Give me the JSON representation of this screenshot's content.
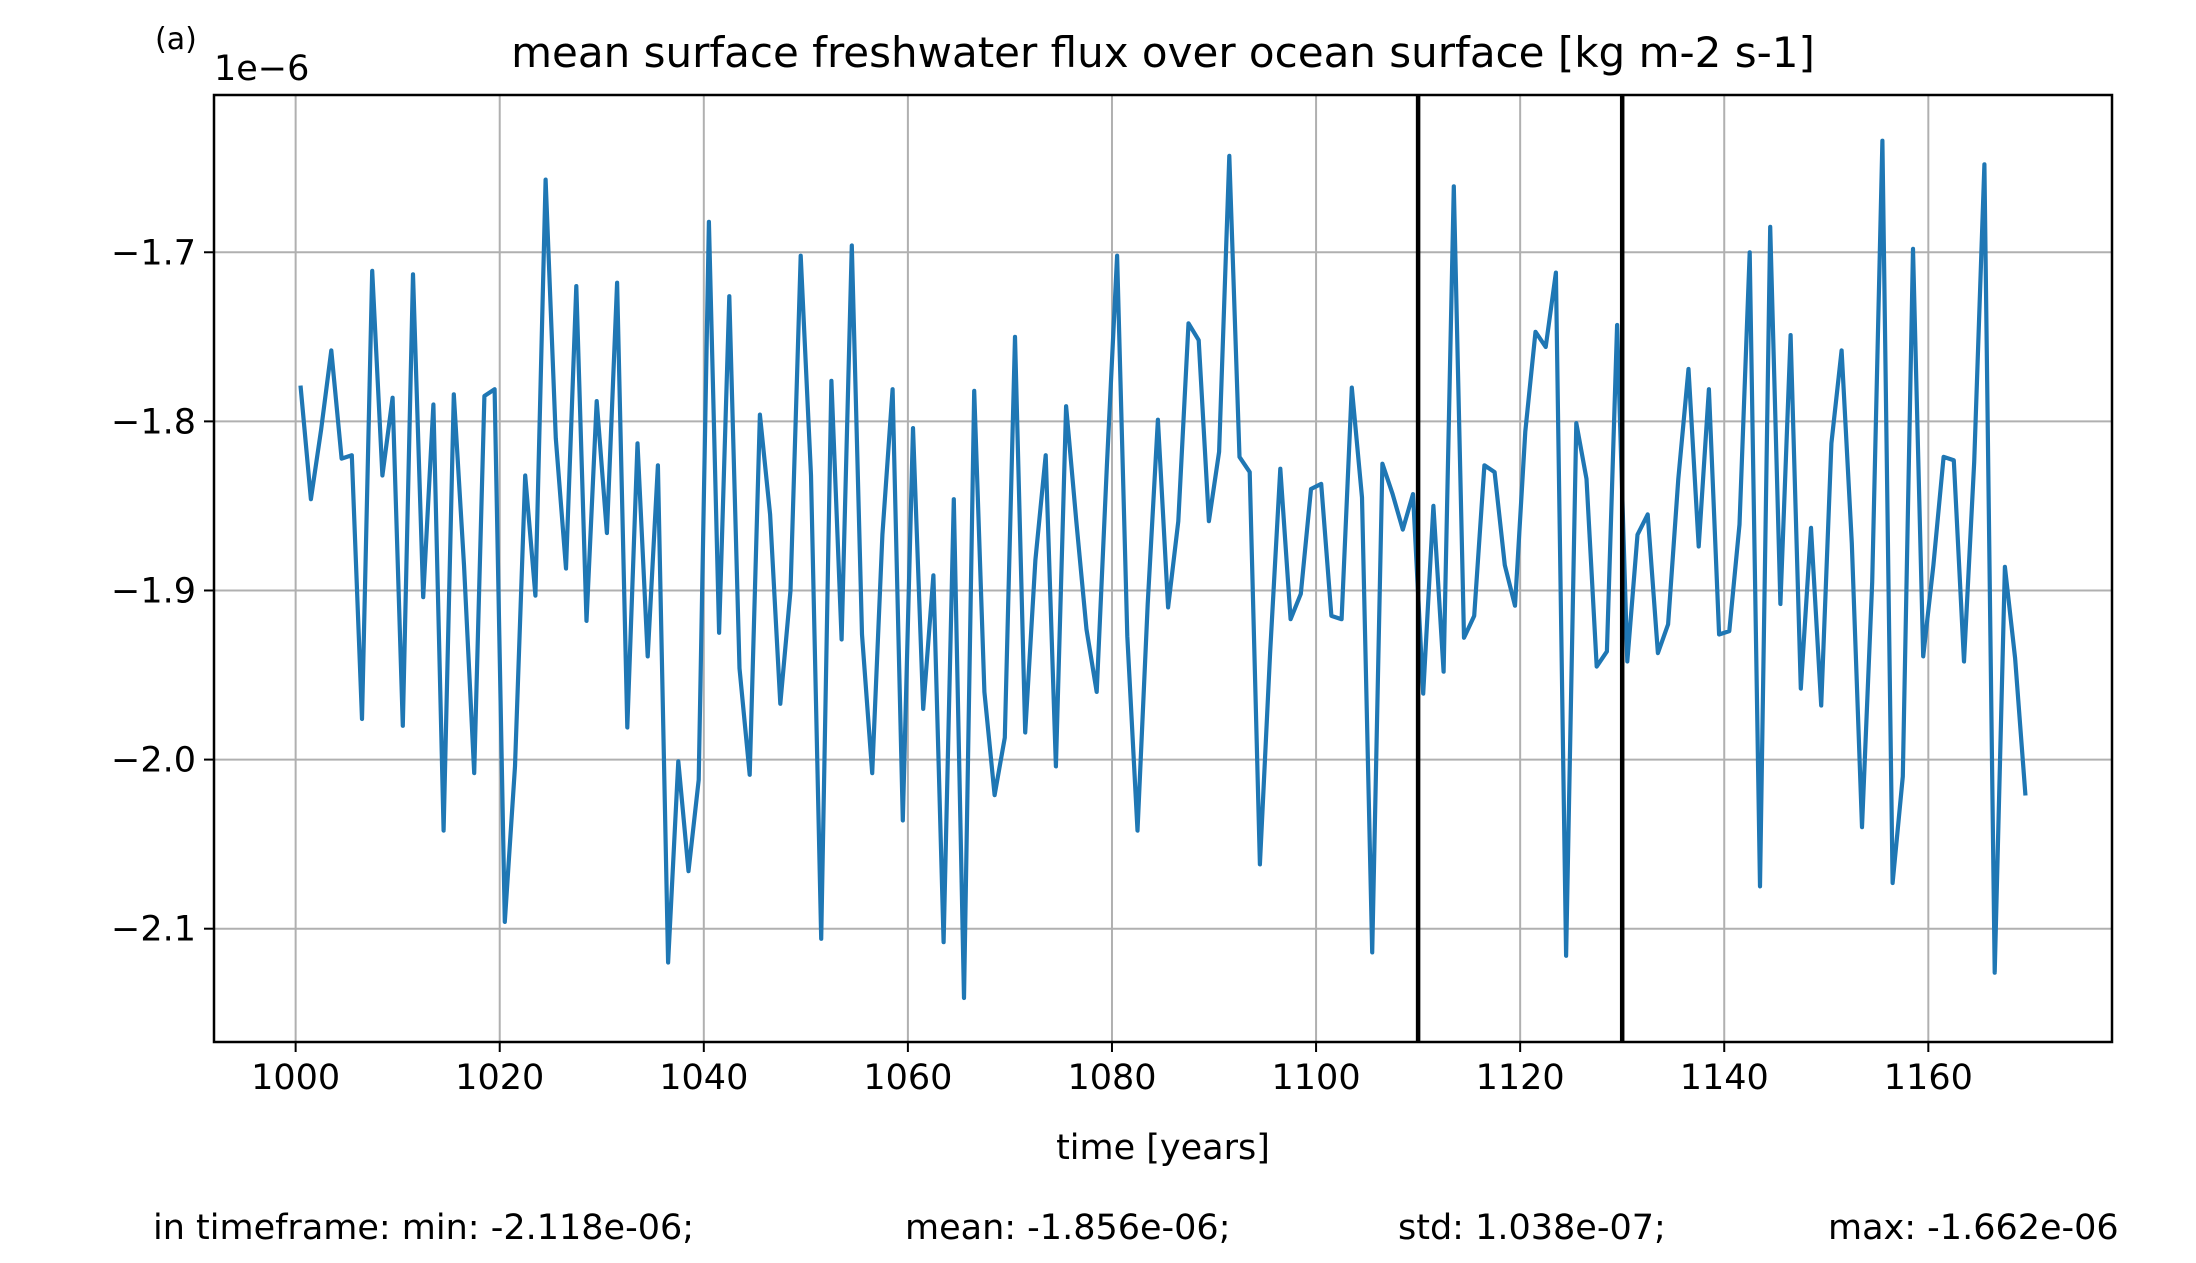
{
  "panel_label": "(a)",
  "footer": {
    "min": "in timeframe: min: -2.118e-06;",
    "mean": "mean: -1.856e-06;",
    "std": "std: 1.038e-07;",
    "max": "max: -1.662e-06"
  },
  "chart_data": {
    "type": "line",
    "title": "mean surface freshwater flux over ocean surface [kg m-2 s-1]",
    "xlabel": "time [years]",
    "ylabel": "",
    "y_offset_label": "1e−6",
    "xlim": [
      992,
      1178
    ],
    "ylim": [
      -2.167,
      -1.607
    ],
    "xticks": [
      1000,
      1020,
      1040,
      1060,
      1080,
      1100,
      1120,
      1140,
      1160
    ],
    "xtick_labels": [
      "1000",
      "1020",
      "1040",
      "1060",
      "1080",
      "1100",
      "1120",
      "1140",
      "1160"
    ],
    "yticks": [
      -1.7,
      -1.8,
      -1.9,
      -2.0,
      -2.1
    ],
    "ytick_labels": [
      "−1.7",
      "−1.8",
      "−1.9",
      "−2.0",
      "−2.1"
    ],
    "grid": true,
    "line_color": "#1f77b4",
    "vlines": [
      1110,
      1130
    ],
    "series": [
      {
        "x": [
          1000.5,
          1001.5,
          1002.5,
          1003.5,
          1004.5,
          1005.5,
          1006.5,
          1007.5,
          1008.5,
          1009.5,
          1010.5,
          1011.5,
          1012.5,
          1013.5,
          1014.5,
          1015.5,
          1016.5,
          1017.5,
          1018.5,
          1019.5,
          1020.5,
          1021.5,
          1022.5,
          1023.5,
          1024.5,
          1025.5,
          1026.5,
          1027.5,
          1028.5,
          1029.5,
          1030.5,
          1031.5,
          1032.5,
          1033.5,
          1034.5,
          1035.5,
          1036.5,
          1037.5,
          1038.5,
          1039.5,
          1040.5,
          1041.5,
          1042.5,
          1043.5,
          1044.5,
          1045.5,
          1046.5,
          1047.5,
          1048.5,
          1049.5,
          1050.5,
          1051.5,
          1052.5,
          1053.5,
          1054.5,
          1055.5,
          1056.5,
          1057.5,
          1058.5,
          1059.5,
          1060.5,
          1061.5,
          1062.5,
          1063.5,
          1064.5,
          1065.5,
          1066.5,
          1067.5,
          1068.5,
          1069.5,
          1070.5,
          1071.5,
          1072.5,
          1073.5,
          1074.5,
          1075.5,
          1076.5,
          1077.5,
          1078.5,
          1079.5,
          1080.5,
          1081.5,
          1082.5,
          1083.5,
          1084.5,
          1085.5,
          1086.5,
          1087.5,
          1088.5,
          1089.5,
          1090.5,
          1091.5,
          1092.5,
          1093.5,
          1094.5,
          1095.5,
          1096.5,
          1097.5,
          1098.5,
          1099.5,
          1100.5,
          1101.5,
          1102.5,
          1103.5,
          1104.5,
          1105.5,
          1106.5,
          1107.5,
          1108.5,
          1109.5,
          1110.5,
          1111.5,
          1112.5,
          1113.5,
          1114.5,
          1115.5,
          1116.5,
          1117.5,
          1118.5,
          1119.5,
          1120.5,
          1121.5,
          1122.5,
          1123.5,
          1124.5,
          1125.5,
          1126.5,
          1127.5,
          1128.5,
          1129.5,
          1130.5,
          1131.5,
          1132.5,
          1133.5,
          1134.5,
          1135.5,
          1136.5,
          1137.5,
          1138.5,
          1139.5,
          1140.5,
          1141.5,
          1142.5,
          1143.5,
          1144.5,
          1145.5,
          1146.5,
          1147.5,
          1148.5,
          1149.5,
          1150.5,
          1151.5,
          1152.5,
          1153.5,
          1154.5,
          1155.5,
          1156.5,
          1157.5,
          1158.5,
          1159.5,
          1160.5,
          1161.5,
          1162.5,
          1163.5,
          1164.5,
          1165.5,
          1166.5,
          1167.5,
          1168.5,
          1169.5
        ],
        "values": [
          -1.78,
          -1.846,
          -1.805,
          -1.758,
          -1.822,
          -1.82,
          -1.976,
          -1.711,
          -1.832,
          -1.786,
          -1.98,
          -1.713,
          -1.904,
          -1.79,
          -2.042,
          -1.784,
          -1.885,
          -2.008,
          -1.785,
          -1.781,
          -2.096,
          -2.004,
          -1.832,
          -1.903,
          -1.657,
          -1.81,
          -1.887,
          -1.72,
          -1.918,
          -1.788,
          -1.866,
          -1.718,
          -1.981,
          -1.813,
          -1.939,
          -1.826,
          -2.12,
          -2.001,
          -2.066,
          -2.012,
          -1.682,
          -1.925,
          -1.726,
          -1.946,
          -2.009,
          -1.796,
          -1.855,
          -1.967,
          -1.9,
          -1.702,
          -1.832,
          -2.106,
          -1.776,
          -1.929,
          -1.696,
          -1.926,
          -2.008,
          -1.867,
          -1.781,
          -2.036,
          -1.804,
          -1.97,
          -1.891,
          -2.108,
          -1.846,
          -2.141,
          -1.782,
          -1.96,
          -2.021,
          -1.987,
          -1.75,
          -1.984,
          -1.882,
          -1.82,
          -2.004,
          -1.791,
          -1.859,
          -1.923,
          -1.96,
          -1.826,
          -1.702,
          -1.927,
          -2.042,
          -1.908,
          -1.799,
          -1.91,
          -1.859,
          -1.742,
          -1.752,
          -1.859,
          -1.818,
          -1.643,
          -1.821,
          -1.83,
          -2.062,
          -1.937,
          -1.828,
          -1.917,
          -1.902,
          -1.84,
          -1.837,
          -1.915,
          -1.917,
          -1.78,
          -1.845,
          -2.114,
          -1.825,
          -1.843,
          -1.864,
          -1.843,
          -1.961,
          -1.85,
          -1.948,
          -1.661,
          -1.928,
          -1.915,
          -1.826,
          -1.83,
          -1.885,
          -1.909,
          -1.806,
          -1.747,
          -1.756,
          -1.712,
          -2.116,
          -1.801,
          -1.834,
          -1.945,
          -1.936,
          -1.743,
          -1.942,
          -1.867,
          -1.855,
          -1.937,
          -1.92,
          -1.834,
          -1.769,
          -1.874,
          -1.781,
          -1.926,
          -1.924,
          -1.861,
          -1.7,
          -2.075,
          -1.685,
          -1.908,
          -1.749,
          -1.958,
          -1.863,
          -1.968,
          -1.813,
          -1.758,
          -1.872,
          -2.04,
          -1.895,
          -1.634,
          -2.073,
          -2.01,
          -1.698,
          -1.939,
          -1.885,
          -1.821,
          -1.823,
          -1.942,
          -1.824,
          -1.648,
          -2.126,
          -1.886,
          -1.94,
          -2.02
        ]
      }
    ]
  }
}
